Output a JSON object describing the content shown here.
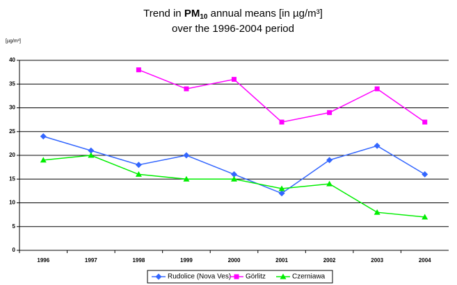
{
  "chart_data": {
    "type": "line",
    "title": [
      "Trend in",
      "PM",
      "10",
      "annual means [in µg/m³]"
    ],
    "subtitle": "over the 1996-2004 period",
    "y_label": "[µg/m³]",
    "categories": [
      "1996",
      "1997",
      "1998",
      "1999",
      "2000",
      "2001",
      "2002",
      "2003",
      "2004"
    ],
    "series": [
      {
        "name": "Rudolice (Nova Ves)",
        "color": "#3366ff",
        "marker": "diamond",
        "values": [
          24,
          21,
          18,
          20,
          16,
          12,
          19,
          22,
          16
        ]
      },
      {
        "name": "Görlitz",
        "color": "#ff00ff",
        "marker": "square",
        "values": [
          null,
          null,
          38,
          34,
          36,
          27,
          29,
          34,
          27
        ]
      },
      {
        "name": "Czerniawa",
        "color": "#00ee00",
        "marker": "triangle",
        "values": [
          19,
          20,
          16,
          15,
          15,
          13,
          14,
          8,
          7
        ]
      }
    ],
    "ylim": [
      0,
      40
    ],
    "yticks": [
      0,
      5,
      10,
      15,
      20,
      25,
      30,
      35,
      40
    ],
    "grid": true,
    "legend": "bottom"
  }
}
